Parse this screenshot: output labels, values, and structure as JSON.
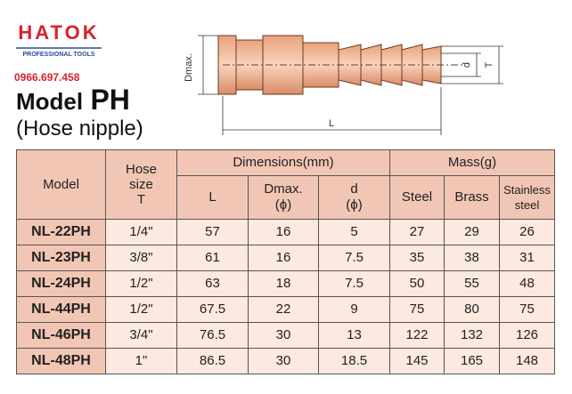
{
  "header": {
    "logo": "HATOK",
    "tagline": "PROFESSIONAL TOOLS",
    "phone": "0966.697.458",
    "title_prefix": "Model",
    "title_model": "PH",
    "subtitle": "(Hose nipple)"
  },
  "diagram": {
    "dmax": "Dmax.",
    "d": "d",
    "t": "T",
    "l": "L"
  },
  "table": {
    "header": {
      "model": "Model",
      "hose_size": "Hose\nsize\nT",
      "dimensions": "Dimensions(mm)",
      "mass": "Mass(g)",
      "l": "L",
      "dmax": "Dmax.\n(ϕ)",
      "d": "d\n(ϕ)",
      "steel": "Steel",
      "brass": "Brass",
      "stainless": "Stainless\nsteel"
    },
    "rows": [
      [
        "NL-22PH",
        "1/4\"",
        57,
        16,
        5,
        27,
        29,
        26
      ],
      [
        "NL-23PH",
        "3/8\"",
        61,
        16,
        7.5,
        35,
        38,
        31
      ],
      [
        "NL-24PH",
        "1/2\"",
        63,
        18,
        7.5,
        50,
        55,
        48
      ],
      [
        "NL-44PH",
        "1/2\"",
        67.5,
        22,
        9,
        75,
        80,
        75
      ],
      [
        "NL-46PH",
        "3/4\"",
        76.5,
        30,
        13,
        122,
        132,
        126
      ],
      [
        "NL-48PH",
        "1\"",
        86.5,
        30,
        18.5,
        145,
        165,
        148
      ]
    ]
  }
}
